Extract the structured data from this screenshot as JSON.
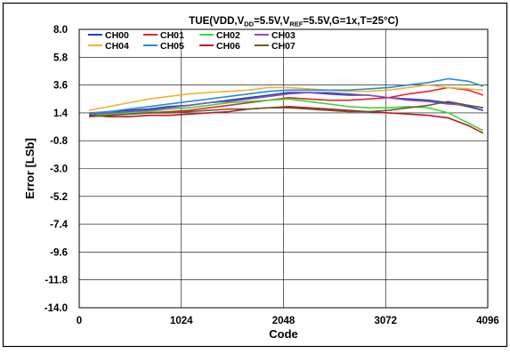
{
  "chart_data": {
    "type": "line",
    "title_parts": [
      {
        "t": "TUE(VDD,V",
        "sub": false
      },
      {
        "t": "DD",
        "sub": true
      },
      {
        "t": "=5.5V,V",
        "sub": false
      },
      {
        "t": "REF",
        "sub": true
      },
      {
        "t": "=5.5V,G=1x,T=25°C)",
        "sub": false
      }
    ],
    "xlabel": "Code",
    "ylabel": "Error [LSb]",
    "xlim": [
      0,
      4096
    ],
    "ylim": [
      -14.0,
      8.0
    ],
    "xticks": [
      0,
      1024,
      2048,
      3072,
      4096
    ],
    "xtick_labels": [
      "0",
      "1024",
      "2048",
      "3072",
      "4096"
    ],
    "yticks": [
      8.0,
      5.8,
      3.6,
      1.4,
      -0.8,
      -3.0,
      -5.2,
      -7.4,
      -9.6,
      -11.8,
      -14.0
    ],
    "ytick_labels": [
      "8.0",
      "5.8",
      "3.6",
      "1.4",
      "-0.8",
      "-3.0",
      "-5.2",
      "-7.4",
      "-9.6",
      "-11.8",
      "-14.0"
    ],
    "grid": true,
    "legend_position": "top-left",
    "x": [
      100,
      300,
      500,
      700,
      900,
      1100,
      1300,
      1500,
      1700,
      1900,
      2100,
      2300,
      2500,
      2700,
      2900,
      3100,
      3300,
      3500,
      3700,
      3900,
      4050
    ],
    "series": [
      {
        "name": "CH00",
        "color": "#1f3fbf",
        "values": [
          1.3,
          1.5,
          1.6,
          1.7,
          1.9,
          2.0,
          2.2,
          2.4,
          2.6,
          2.8,
          3.0,
          3.0,
          2.9,
          2.8,
          2.8,
          2.6,
          2.5,
          2.4,
          2.2,
          1.9,
          1.6
        ]
      },
      {
        "name": "CH01",
        "color": "#e3262b",
        "values": [
          1.2,
          1.3,
          1.3,
          1.4,
          1.5,
          1.6,
          1.8,
          2.0,
          2.2,
          2.4,
          2.6,
          2.5,
          2.4,
          2.4,
          2.5,
          2.6,
          2.9,
          3.1,
          3.4,
          3.2,
          2.8
        ]
      },
      {
        "name": "CH02",
        "color": "#3bd63b",
        "values": [
          1.2,
          1.3,
          1.4,
          1.5,
          1.7,
          1.8,
          2.0,
          2.2,
          2.3,
          2.4,
          2.5,
          2.3,
          2.1,
          1.9,
          1.8,
          1.8,
          1.9,
          1.8,
          1.4,
          0.6,
          0.0
        ]
      },
      {
        "name": "CH03",
        "color": "#8f4fb8",
        "values": [
          1.3,
          1.4,
          1.5,
          1.6,
          1.8,
          2.0,
          2.2,
          2.3,
          2.5,
          2.7,
          2.9,
          3.0,
          3.0,
          2.9,
          2.8,
          2.6,
          2.4,
          2.3,
          2.1,
          2.0,
          1.8
        ]
      },
      {
        "name": "CH04",
        "color": "#f2b233",
        "values": [
          1.6,
          1.9,
          2.2,
          2.5,
          2.7,
          2.9,
          3.0,
          3.1,
          3.2,
          3.4,
          3.4,
          3.3,
          3.2,
          3.1,
          3.1,
          3.2,
          3.4,
          3.6,
          3.4,
          3.3,
          3.2
        ]
      },
      {
        "name": "CH05",
        "color": "#1f8fd6",
        "values": [
          1.4,
          1.5,
          1.7,
          1.9,
          2.1,
          2.3,
          2.5,
          2.7,
          2.9,
          3.1,
          3.2,
          3.2,
          3.2,
          3.2,
          3.3,
          3.4,
          3.6,
          3.8,
          4.1,
          3.9,
          3.5
        ]
      },
      {
        "name": "CH06",
        "color": "#c0152a",
        "values": [
          1.2,
          1.1,
          1.1,
          1.2,
          1.2,
          1.3,
          1.4,
          1.5,
          1.7,
          1.8,
          1.9,
          1.8,
          1.7,
          1.6,
          1.5,
          1.4,
          1.3,
          1.2,
          1.0,
          0.4,
          -0.2
        ]
      },
      {
        "name": "CH07",
        "color": "#6a5a2c",
        "values": [
          1.1,
          1.2,
          1.3,
          1.4,
          1.4,
          1.5,
          1.6,
          1.7,
          1.7,
          1.8,
          1.8,
          1.7,
          1.6,
          1.5,
          1.5,
          1.6,
          1.8,
          2.0,
          2.3,
          2.0,
          1.8
        ]
      }
    ]
  }
}
